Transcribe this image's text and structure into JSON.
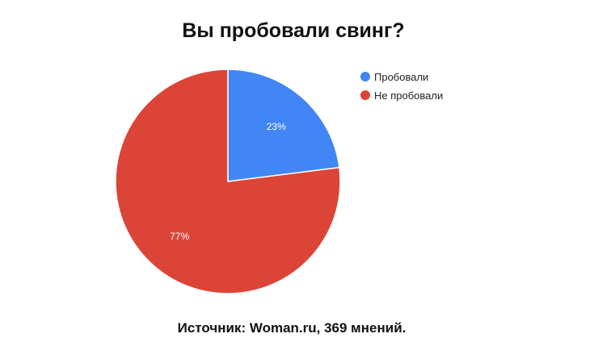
{
  "chart_data": {
    "type": "pie",
    "title": "Вы пробовали свинг?",
    "categories": [
      "Пробовали",
      "Не пробовали"
    ],
    "values": [
      23,
      77
    ],
    "data_labels": [
      "23%",
      "77%"
    ],
    "colors": [
      "#4285f4",
      "#db4437"
    ],
    "legend_position": "right",
    "source": "Источник: Woman.ru, 369 мнений."
  }
}
